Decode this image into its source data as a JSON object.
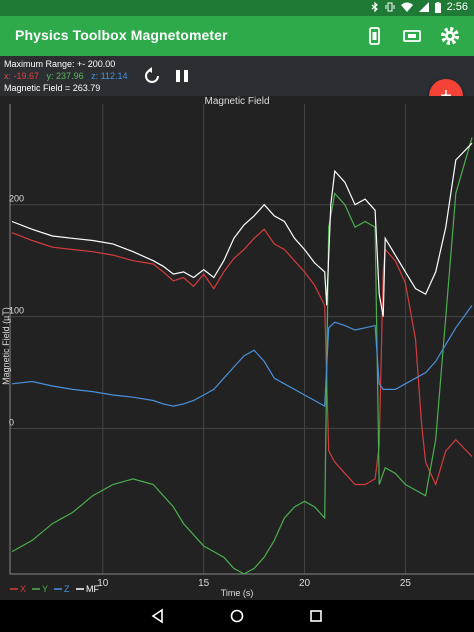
{
  "status": {
    "time": "2:56",
    "icons": [
      "bluetooth-icon",
      "vibrate-icon",
      "wifi-icon",
      "signal-icon",
      "battery-icon"
    ]
  },
  "app": {
    "title": "Physics Toolbox Magnetometer",
    "icons": [
      "phone-icon",
      "screen-icon",
      "gear-icon"
    ],
    "bar_color": "#2eaa4b"
  },
  "info": {
    "range": "Maximum Range: +- 200.00",
    "x": "x: -19.67",
    "y": "y: 237.96",
    "z": "z: 112.14",
    "field": "Magnetic Field = 263.79"
  },
  "controls": {
    "icons": [
      "reset-icon",
      "pause-icon"
    ]
  },
  "fab": {
    "label": "+"
  },
  "nav": {
    "icons": [
      "back-icon",
      "home-icon",
      "recents-icon"
    ]
  },
  "chart_data": {
    "type": "line",
    "title": "Magnetic Field",
    "xlabel": "Time (s)",
    "ylabel": "Magnetic Field (µT)",
    "xlim": [
      5.4,
      28.4
    ],
    "ylim": [
      -130,
      290
    ],
    "xticks": [
      10,
      15,
      20,
      25
    ],
    "yticks": [
      0,
      100,
      200
    ],
    "grid": true,
    "legend_position": "bottom-left",
    "legend": [
      "X",
      "Y",
      "Z",
      "MF"
    ],
    "colors": {
      "X": "#d43c3c",
      "Y": "#4caf50",
      "Z": "#4a90d9",
      "MF": "#ffffff"
    },
    "series": [
      {
        "name": "X",
        "x": [
          5.5,
          6.5,
          7.5,
          8.5,
          9.5,
          10.5,
          11.5,
          12.5,
          13,
          13.5,
          14,
          14.5,
          15,
          15.5,
          16,
          16.5,
          17,
          17.5,
          18,
          18.5,
          19,
          19.5,
          20,
          20.5,
          21,
          21.2,
          21.5,
          22,
          22.5,
          23,
          23.5,
          23.7,
          23.9,
          24,
          24.5,
          25,
          25.5,
          25.8,
          26,
          26.5,
          27,
          27.5,
          28.3
        ],
        "y": [
          175,
          168,
          162,
          160,
          158,
          155,
          150,
          147,
          140,
          132,
          135,
          127,
          138,
          125,
          140,
          152,
          160,
          170,
          178,
          165,
          160,
          150,
          140,
          128,
          110,
          -20,
          -30,
          -40,
          -50,
          -50,
          -45,
          -15,
          140,
          160,
          150,
          130,
          80,
          5,
          -30,
          -50,
          -20,
          -10,
          -25
        ]
      },
      {
        "name": "Y",
        "x": [
          5.5,
          6.5,
          7.5,
          8.5,
          9.5,
          10.5,
          11.5,
          12.5,
          13,
          13.5,
          14,
          14.5,
          15,
          15.5,
          16,
          16.5,
          17,
          17.5,
          18,
          18.5,
          19,
          19.5,
          20,
          20.5,
          21,
          21.2,
          21.5,
          22,
          22.5,
          23,
          23.5,
          23.7,
          23.9,
          24,
          24.5,
          25,
          25.5,
          26,
          26.5,
          27,
          27.5,
          28.3
        ],
        "y": [
          -110,
          -100,
          -85,
          -75,
          -60,
          -50,
          -45,
          -50,
          -60,
          -70,
          -85,
          -95,
          -105,
          -110,
          -115,
          -125,
          -130,
          -125,
          -115,
          -100,
          -80,
          -70,
          -65,
          -70,
          -80,
          180,
          210,
          200,
          180,
          185,
          180,
          -50,
          -40,
          -35,
          -40,
          -50,
          -55,
          -60,
          -10,
          100,
          210,
          260
        ]
      },
      {
        "name": "Z",
        "x": [
          5.5,
          6.5,
          7.5,
          8.5,
          9.5,
          10.5,
          11.5,
          12.5,
          13,
          13.5,
          14,
          14.5,
          15,
          15.5,
          16,
          16.5,
          17,
          17.5,
          18,
          18.5,
          19,
          19.5,
          20,
          20.5,
          21,
          21.2,
          21.5,
          22,
          22.5,
          23,
          23.5,
          23.7,
          23.9,
          24,
          24.5,
          25,
          25.5,
          26,
          26.5,
          27,
          27.5,
          28.3
        ],
        "y": [
          40,
          42,
          38,
          35,
          33,
          30,
          28,
          25,
          22,
          20,
          22,
          25,
          30,
          35,
          45,
          55,
          65,
          70,
          60,
          45,
          40,
          35,
          30,
          25,
          20,
          90,
          95,
          92,
          88,
          90,
          92,
          40,
          35,
          35,
          35,
          40,
          45,
          50,
          60,
          75,
          90,
          110
        ]
      },
      {
        "name": "MF",
        "x": [
          5.5,
          6.5,
          7.5,
          8.5,
          9.5,
          10.5,
          11.5,
          12.5,
          13,
          13.5,
          14,
          14.5,
          15,
          15.5,
          16,
          16.5,
          17,
          17.5,
          18,
          18.5,
          19,
          19.5,
          20,
          20.5,
          21,
          21.1,
          21.3,
          21.5,
          22,
          22.5,
          23,
          23.5,
          23.7,
          23.9,
          24,
          24.5,
          25,
          25.5,
          26,
          26.5,
          27,
          27.5,
          28.3
        ],
        "y": [
          185,
          178,
          172,
          170,
          168,
          165,
          158,
          150,
          145,
          138,
          140,
          135,
          142,
          135,
          150,
          170,
          182,
          190,
          200,
          190,
          185,
          170,
          160,
          148,
          140,
          110,
          200,
          230,
          220,
          200,
          205,
          195,
          120,
          100,
          170,
          155,
          140,
          125,
          120,
          140,
          180,
          240,
          255
        ]
      }
    ]
  }
}
